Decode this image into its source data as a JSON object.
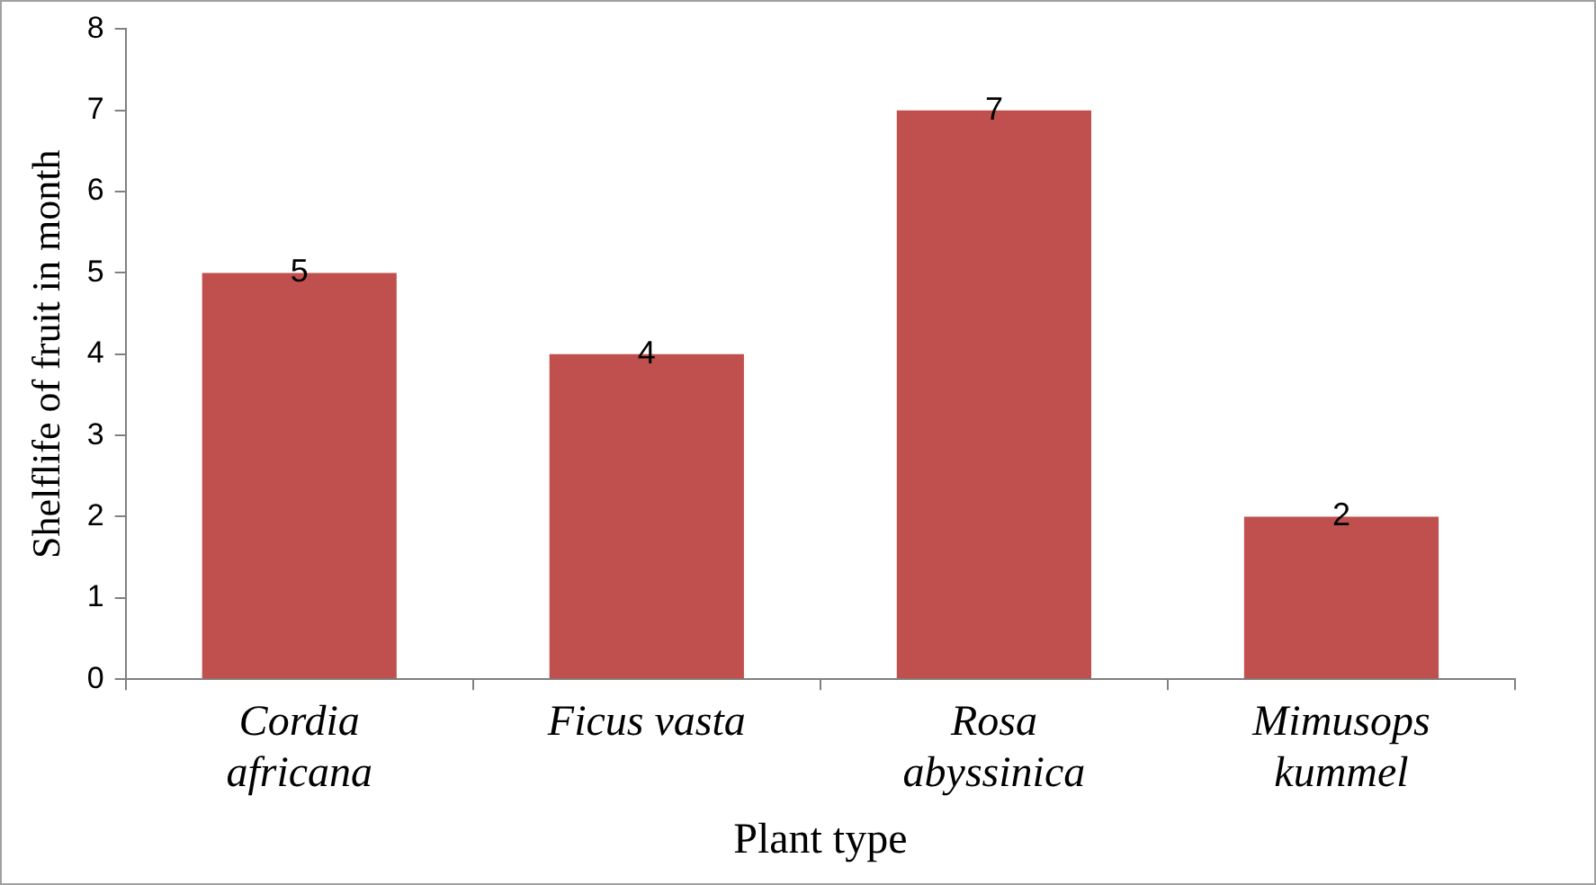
{
  "chart_data": {
    "type": "bar",
    "xlabel": "Plant type",
    "ylabel": "Shelflife of fruit in month",
    "categories": [
      "Cordia africana",
      "Ficus vasta",
      "Rosa abyssinica",
      "Mimusops kummel"
    ],
    "values": [
      5,
      4,
      7,
      2
    ],
    "color": "#c0504d",
    "ylim": [
      0,
      8
    ],
    "yticks": [
      0,
      1,
      2,
      3,
      4,
      5,
      6,
      7,
      8
    ],
    "grid": false,
    "legend": false,
    "data_labels": true
  }
}
